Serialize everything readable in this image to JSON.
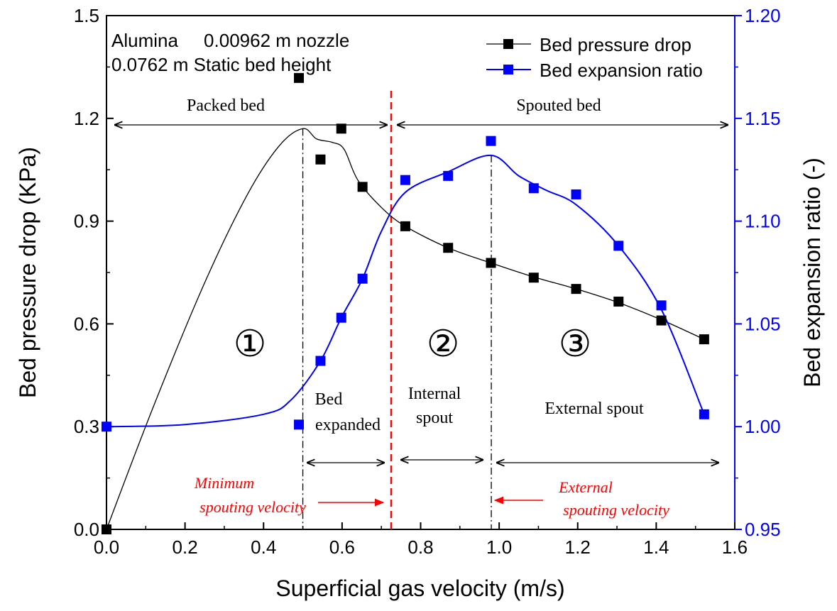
{
  "chart_data": {
    "type": "line",
    "xlabel": "Superficial gas velocity (m/s)",
    "ylabel_left": "Bed pressure drop (KPa)",
    "ylabel_right": "Bed expansion ratio (-)",
    "xlim": [
      0.0,
      1.6
    ],
    "ylim_left": [
      0.0,
      1.5
    ],
    "ylim_right": [
      0.95,
      1.2
    ],
    "x_ticks": [
      "0.0",
      "0.2",
      "0.4",
      "0.6",
      "0.8",
      "1.0",
      "1.2",
      "1.4",
      "1.6"
    ],
    "y_left_ticks": [
      "0.0",
      "0.3",
      "0.6",
      "0.9",
      "1.2",
      "1.5"
    ],
    "y_right_ticks": [
      "0.95",
      "1.00",
      "1.05",
      "1.10",
      "1.15",
      "1.20"
    ],
    "legend_position": "top-right",
    "colors": {
      "pressure": "#000000",
      "expansion": "#0000ff",
      "marker_line": "#ff0000"
    },
    "series": [
      {
        "name": "Bed pressure drop",
        "axis": "left",
        "x": [
          0.0,
          0.49,
          0.545,
          0.598,
          0.652,
          0.761,
          0.87,
          0.979,
          1.088,
          1.196,
          1.304,
          1.413,
          1.522
        ],
        "y": [
          0.0,
          1.318,
          1.08,
          1.17,
          1.0,
          0.885,
          0.822,
          0.778,
          0.735,
          0.702,
          0.665,
          0.61,
          0.555
        ]
      },
      {
        "name": "Bed expansion ratio",
        "axis": "right",
        "x": [
          0.0,
          0.49,
          0.545,
          0.598,
          0.652,
          0.761,
          0.87,
          0.979,
          1.088,
          1.196,
          1.304,
          1.413,
          1.522
        ],
        "y": [
          1.0,
          1.001,
          1.032,
          1.053,
          1.072,
          1.12,
          1.122,
          1.139,
          1.116,
          1.113,
          1.088,
          1.059,
          1.006
        ]
      }
    ],
    "annotations": {
      "info_line1": "Alumina     0.00962 m nozzle",
      "info_line2": "0.0762 m Static bed height",
      "packed_bed": "Packed bed",
      "spouted_bed": "Spouted bed",
      "region1": "①",
      "region2": "②",
      "region3": "③",
      "bed_expanded_1": "Bed",
      "bed_expanded_2": "expanded",
      "internal_spout_1": "Internal",
      "internal_spout_2": "spout",
      "external_spout": "External spout",
      "min_spouting_1": "Minimum",
      "min_spouting_2": "spouting velocity",
      "ext_spouting_1": "External",
      "ext_spouting_2": "spouting velocity",
      "min_spouting_velocity": 0.725,
      "peak_velocity": 0.5,
      "external_spouting_velocity": 0.98
    }
  }
}
